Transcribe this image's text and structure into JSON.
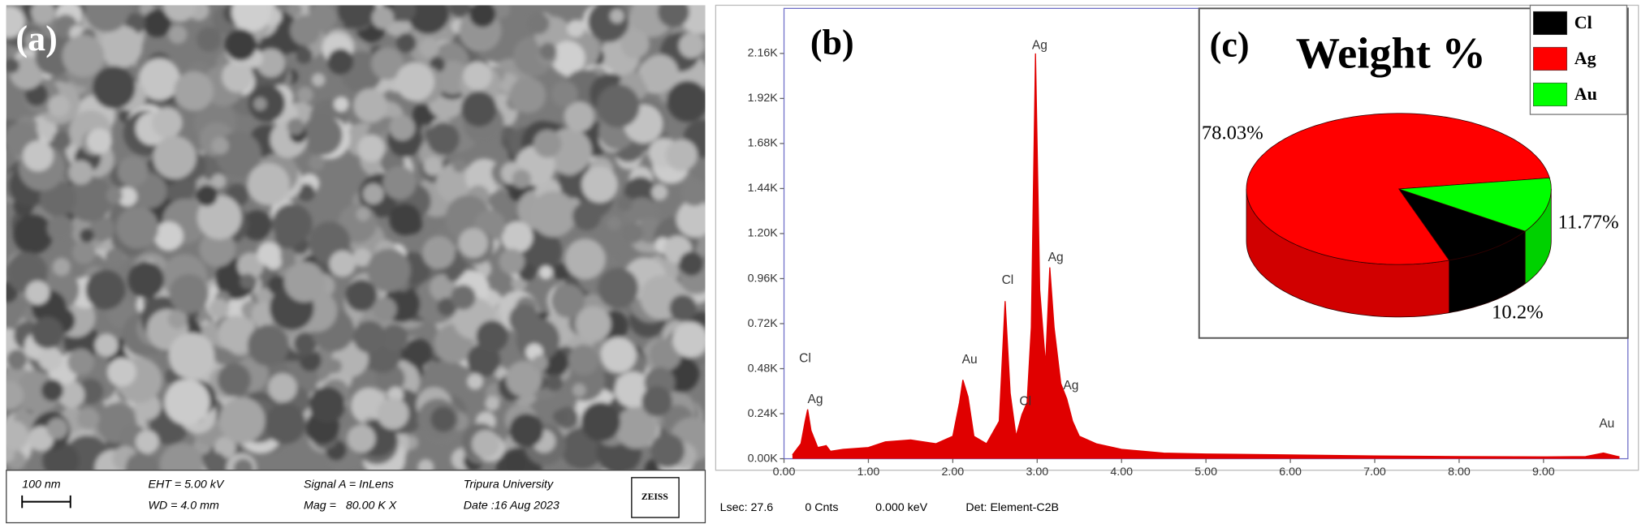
{
  "panel_a": {
    "label": "(a)",
    "scale_bar": "100 nm",
    "eht": "EHT = 5.00 kV",
    "wd": "WD = 4.0 mm",
    "signal": "Signal A = InLens",
    "mag": "Mag =   80.00 K X",
    "institution": "Tripura University",
    "date": "Date :16 Aug 2023",
    "brand": "ZEISS"
  },
  "chart_data": [
    {
      "type": "area",
      "label": "(b)",
      "color": "#e00000",
      "x": [
        0.1,
        0.2,
        0.25,
        0.28,
        0.32,
        0.4,
        0.5,
        0.55,
        0.7,
        1.0,
        1.2,
        1.5,
        1.8,
        2.0,
        2.08,
        2.12,
        2.18,
        2.25,
        2.4,
        2.55,
        2.62,
        2.68,
        2.75,
        2.82,
        2.88,
        2.93,
        2.98,
        3.03,
        3.1,
        3.15,
        3.2,
        3.28,
        3.35,
        3.42,
        3.5,
        3.7,
        4.0,
        4.5,
        5.0,
        6.0,
        7.0,
        8.0,
        9.0,
        9.5,
        9.71,
        9.85,
        9.9
      ],
      "values": [
        20,
        80,
        200,
        263,
        150,
        60,
        70,
        40,
        50,
        60,
        90,
        100,
        80,
        120,
        300,
        420,
        330,
        120,
        80,
        200,
        840,
        350,
        120,
        235,
        300,
        700,
        2160,
        900,
        500,
        1020,
        700,
        400,
        320,
        200,
        120,
        80,
        50,
        30,
        25,
        20,
        15,
        12,
        10,
        12,
        30,
        15,
        10
      ],
      "xlim": [
        0,
        10
      ],
      "ylim": [
        0,
        2400
      ],
      "xticks": [
        {
          "value": 0,
          "label": "0.00"
        },
        {
          "value": 1,
          "label": "1.00"
        },
        {
          "value": 2,
          "label": "2.00"
        },
        {
          "value": 3,
          "label": "3.00"
        },
        {
          "value": 4,
          "label": "4.00"
        },
        {
          "value": 5,
          "label": "5.00"
        },
        {
          "value": 6,
          "label": "6.00"
        },
        {
          "value": 7,
          "label": "7.00"
        },
        {
          "value": 8,
          "label": "8.00"
        },
        {
          "value": 9,
          "label": "9.00"
        }
      ],
      "yticks": [
        {
          "value": 0,
          "label": "0.00K"
        },
        {
          "value": 240,
          "label": "0.24K"
        },
        {
          "value": 480,
          "label": "0.48K"
        },
        {
          "value": 720,
          "label": "0.72K"
        },
        {
          "value": 960,
          "label": "0.96K"
        },
        {
          "value": 1200,
          "label": "1.20K"
        },
        {
          "value": 1440,
          "label": "1.44K"
        },
        {
          "value": 1680,
          "label": "1.68K"
        },
        {
          "value": 1920,
          "label": "1.92K"
        },
        {
          "value": 2160,
          "label": "2.16K"
        }
      ],
      "annotations": [
        {
          "text": "Cl",
          "x": 0.25,
          "y": 533
        },
        {
          "text": "Ag",
          "x": 0.37,
          "y": 314
        },
        {
          "text": "Au",
          "x": 2.2,
          "y": 527
        },
        {
          "text": "Cl",
          "x": 2.65,
          "y": 950
        },
        {
          "text": "Cl",
          "x": 2.86,
          "y": 303
        },
        {
          "text": "Ag",
          "x": 3.03,
          "y": 2200
        },
        {
          "text": "Ag",
          "x": 3.22,
          "y": 1071
        },
        {
          "text": "Ag",
          "x": 3.4,
          "y": 387
        },
        {
          "text": "Au",
          "x": 9.75,
          "y": 185
        }
      ],
      "footer": [
        "Lsec: 27.6",
        "0 Cnts",
        "0.000 keV",
        "Det: Element-C2B"
      ]
    },
    {
      "type": "pie",
      "label": "(c)",
      "title": "Weight %",
      "categories": [
        "Cl",
        "Ag",
        "Au"
      ],
      "values": [
        10.2,
        78.03,
        11.77
      ],
      "value_labels": [
        "10.2%",
        "78.03%",
        "11.77%"
      ],
      "colors": [
        "#000000",
        "#ff0000",
        "#00ff00"
      ],
      "legend": "top-right"
    }
  ]
}
